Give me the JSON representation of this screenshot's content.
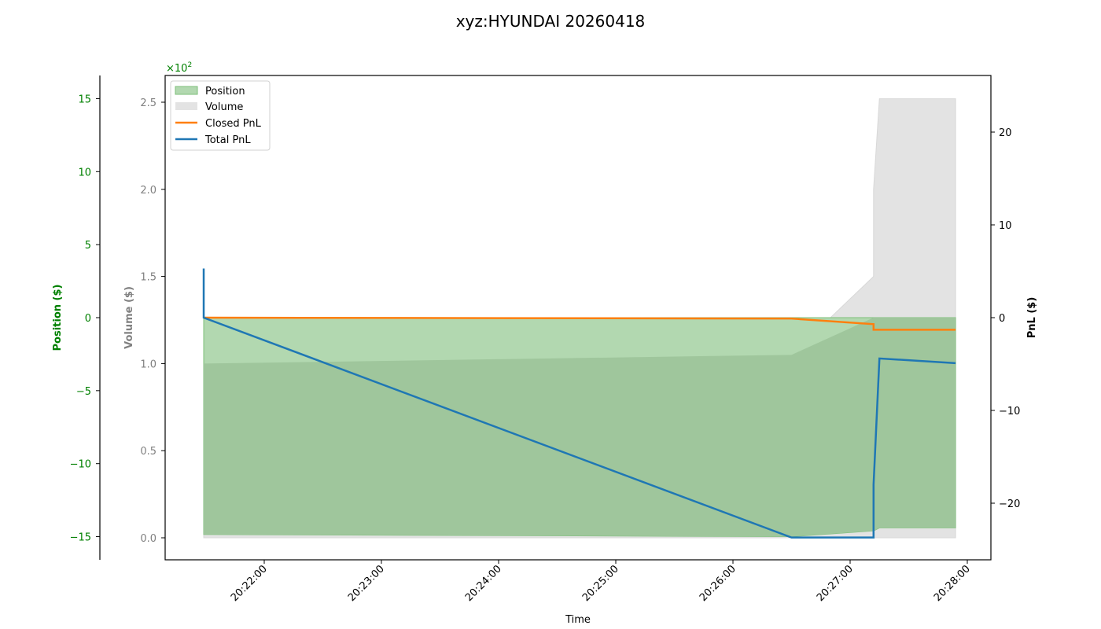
{
  "title": "xyz:HYUNDAI 20260418",
  "colors": {
    "position_fill": "#b2d8b0",
    "position_edge": "#7dbf7a",
    "volume_fill": "#e3e3e3",
    "overlap_fill": "#9fc69c",
    "closed_pnl": "#ff7f0e",
    "total_pnl": "#1f77b4",
    "position_axis": "#008000",
    "volume_axis": "#808080",
    "pnl_axis": "#000000"
  },
  "axes": {
    "x_label": "Time",
    "x_ticks": [
      "20:22:00",
      "20:23:00",
      "20:24:00",
      "20:25:00",
      "20:26:00",
      "20:27:00",
      "20:28:00"
    ],
    "position_label": "Position ($)",
    "position_ticks": [
      "15",
      "10",
      "5",
      "0",
      "−5",
      "−10",
      "−15"
    ],
    "volume_label": "Volume ($)",
    "volume_ticks": [
      "2.5",
      "2.0",
      "1.5",
      "1.0",
      "0.5",
      "0.0"
    ],
    "volume_offset": "×10",
    "volume_offset_exp": "2",
    "pnl_label": "PnL ($)",
    "pnl_ticks": [
      "20",
      "10",
      "0",
      "−10",
      "−20"
    ]
  },
  "legend": {
    "items": [
      {
        "label": "Position",
        "kind": "patch"
      },
      {
        "label": "Volume",
        "kind": "patch"
      },
      {
        "label": "Closed PnL",
        "kind": "line"
      },
      {
        "label": "Total PnL",
        "kind": "line"
      }
    ]
  },
  "chart_data": {
    "type": "line",
    "title": "xyz:HYUNDAI 20260418",
    "xlabel": "Time",
    "x_range": [
      "20:21:10",
      "20:28:12"
    ],
    "legend_position": "upper left",
    "grid": false,
    "axes": [
      {
        "name": "Position ($)",
        "side": "left-outer",
        "ylim": [
          -16.5,
          16.5
        ],
        "ticks": [
          -15,
          -10,
          -5,
          0,
          5,
          10,
          15
        ]
      },
      {
        "name": "Volume ($)",
        "side": "left",
        "scale": "x10^2",
        "ylim": [
          -0.12,
          2.65
        ],
        "ticks": [
          0.0,
          0.5,
          1.0,
          1.5,
          2.0,
          2.5
        ]
      },
      {
        "name": "PnL ($)",
        "side": "right",
        "ylim": [
          -26,
          26
        ],
        "ticks": [
          -20,
          -10,
          0,
          10,
          20
        ]
      }
    ],
    "series": [
      {
        "name": "Position",
        "type": "area",
        "axis": "Position ($)",
        "x": [
          "20:21:29",
          "20:26:30",
          "20:27:12",
          "20:27:15",
          "20:27:54"
        ],
        "values": [
          -14.85,
          -15.0,
          -14.6,
          -14.4,
          -14.4
        ]
      },
      {
        "name": "Volume",
        "type": "area",
        "axis": "Volume ($)",
        "x": [
          "20:21:29",
          "20:26:30",
          "20:27:12",
          "20:27:12",
          "20:27:15",
          "20:27:54"
        ],
        "values": [
          1.0,
          1.05,
          1.5,
          2.0,
          2.52,
          2.52
        ]
      },
      {
        "name": "Closed PnL",
        "type": "line",
        "axis": "PnL ($)",
        "x": [
          "20:21:29",
          "20:26:30",
          "20:27:12",
          "20:27:12",
          "20:27:54"
        ],
        "values": [
          0.0,
          -0.1,
          -0.7,
          -1.3,
          -1.3
        ]
      },
      {
        "name": "Total PnL",
        "type": "line",
        "axis": "PnL ($)",
        "x": [
          "20:21:29",
          "20:21:29",
          "20:26:30",
          "20:27:12",
          "20:27:12",
          "20:27:15",
          "20:27:54"
        ],
        "values": [
          5.3,
          0.0,
          -23.7,
          -23.7,
          -18.0,
          -4.4,
          -4.9
        ]
      }
    ]
  }
}
